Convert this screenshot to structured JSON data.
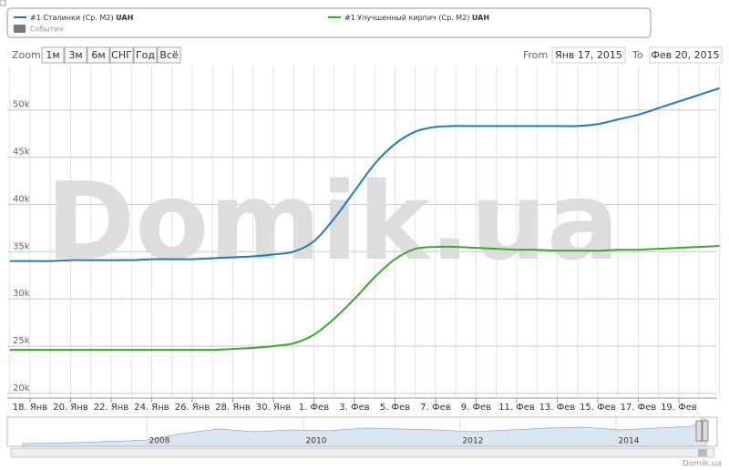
{
  "chart_data": {
    "type": "line",
    "watermark": "Domik.ua",
    "legend_extra": "События",
    "unit": "UAH",
    "zoom_label": "Zoom",
    "zoom_buttons": [
      "1м",
      "3м",
      "6м",
      "СНГ",
      "Год",
      "Всё"
    ],
    "from_label": "From",
    "from_value": "Янв 17, 2015",
    "to_label": "To",
    "to_value": "Фев 20, 2015",
    "navigator_labels": [
      "2008",
      "2010",
      "2012",
      "2014"
    ],
    "credit": "Domik.ua",
    "categories": [
      null,
      "18. Янв",
      null,
      "20. Янв",
      null,
      "22. Янв",
      null,
      "24. Янв",
      null,
      "26. Янв",
      null,
      "28. Янв",
      null,
      "30. Янв",
      null,
      "1. Фев",
      null,
      "3. Фев",
      null,
      "5. Фев",
      null,
      "7. Фев",
      null,
      "9. Фев",
      null,
      "11. Фев",
      null,
      "13. Фев",
      null,
      "15. Фев",
      null,
      "17. Фев",
      null,
      "19. Фев",
      null,
      null
    ],
    "series": [
      {
        "name": "#1 Сталинки (Ср. М2)",
        "color": "#1f7bb6",
        "values": [
          34000,
          34000,
          34000,
          34100,
          34100,
          34100,
          34100,
          34200,
          34200,
          34200,
          34300,
          34400,
          34500,
          34700,
          35000,
          36100,
          38500,
          41400,
          44300,
          46400,
          47700,
          48200,
          48300,
          48300,
          48300,
          48300,
          48300,
          48300,
          48300,
          48500,
          49000,
          49500,
          50200,
          50900,
          51600,
          52300
        ]
      },
      {
        "name": "#1 Улучшенный кирпич (Ср. М2)",
        "color": "#3aa82a",
        "values": [
          24600,
          24600,
          24600,
          24600,
          24600,
          24600,
          24600,
          24600,
          24600,
          24600,
          24600,
          24700,
          24800,
          25000,
          25300,
          26200,
          27900,
          30000,
          32300,
          34200,
          35300,
          35500,
          35500,
          35400,
          35300,
          35200,
          35200,
          35100,
          35100,
          35100,
          35200,
          35200,
          35300,
          35400,
          35500,
          35600
        ]
      }
    ],
    "ylim": [
      19500,
      54700
    ],
    "yticks": [
      {
        "value": 20000,
        "label": "20k"
      },
      {
        "value": 25000,
        "label": "25k"
      },
      {
        "value": 30000,
        "label": "30k"
      },
      {
        "value": 35000,
        "label": "35k"
      },
      {
        "value": 40000,
        "label": "40k"
      },
      {
        "value": 45000,
        "label": "45k"
      },
      {
        "value": 50000,
        "label": "50k"
      }
    ],
    "grid": true
  }
}
